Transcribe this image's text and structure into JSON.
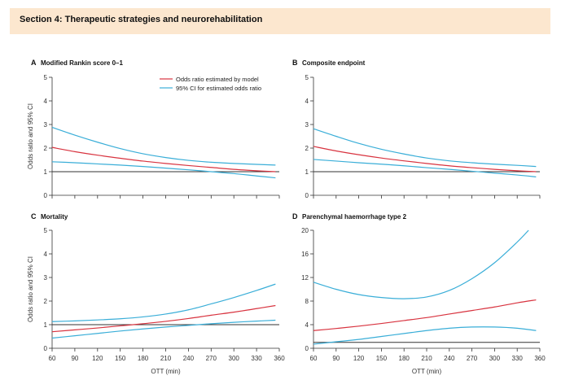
{
  "section": {
    "title": "Section 4: Therapeutic strategies and neurorehabilitation"
  },
  "legend": [
    {
      "label": "Odds ratio estimated by model",
      "color": "#d8333f"
    },
    {
      "label": "95% CI for estimated odds ratio",
      "color": "#3aaed8"
    }
  ],
  "colors": {
    "estimate": "#d8333f",
    "ci": "#3aaed8",
    "reference": "#333333",
    "axis": "#333333"
  },
  "chart_data": [
    {
      "id": "A",
      "letter": "A",
      "title": "Modified Rankin score 0–1",
      "type": "line",
      "xlabel": "",
      "ylabel": "Odds ratio and 95% CI",
      "xlim": [
        60,
        360
      ],
      "ylim": [
        0,
        5
      ],
      "yticks": [
        0,
        1,
        2,
        3,
        4,
        5
      ],
      "xticks": [
        60,
        90,
        120,
        150,
        180,
        210,
        240,
        270,
        300,
        330,
        360
      ],
      "show_xticklabels": false,
      "reference_line": 1,
      "series": [
        {
          "name": "Odds ratio estimated by model",
          "role": "estimate",
          "x": [
            60,
            90,
            120,
            150,
            180,
            210,
            240,
            270,
            300,
            330,
            355
          ],
          "y": [
            2.03,
            1.85,
            1.7,
            1.57,
            1.45,
            1.35,
            1.26,
            1.18,
            1.1,
            1.04,
            1.0
          ]
        },
        {
          "name": "95% CI for estimated odds ratio (upper)",
          "role": "ci",
          "x": [
            60,
            90,
            120,
            150,
            180,
            210,
            240,
            270,
            300,
            330,
            355
          ],
          "y": [
            2.88,
            2.55,
            2.25,
            1.98,
            1.76,
            1.6,
            1.48,
            1.4,
            1.35,
            1.31,
            1.28
          ]
        },
        {
          "name": "95% CI for estimated odds ratio (lower)",
          "role": "ci",
          "x": [
            60,
            90,
            120,
            150,
            180,
            210,
            240,
            270,
            300,
            330,
            355
          ],
          "y": [
            1.42,
            1.38,
            1.33,
            1.28,
            1.22,
            1.15,
            1.08,
            1.0,
            0.92,
            0.82,
            0.74
          ]
        }
      ]
    },
    {
      "id": "B",
      "letter": "B",
      "title": "Composite endpoint",
      "type": "line",
      "xlabel": "",
      "ylabel": "",
      "xlim": [
        60,
        360
      ],
      "ylim": [
        0,
        5
      ],
      "yticks": [
        0,
        1,
        2,
        3,
        4,
        5
      ],
      "xticks": [
        60,
        90,
        120,
        150,
        180,
        210,
        240,
        270,
        300,
        330,
        360
      ],
      "show_xticklabels": false,
      "reference_line": 1,
      "series": [
        {
          "name": "Odds ratio estimated by model",
          "role": "estimate",
          "x": [
            60,
            90,
            120,
            150,
            180,
            210,
            240,
            270,
            300,
            330,
            355
          ],
          "y": [
            2.07,
            1.88,
            1.72,
            1.58,
            1.46,
            1.35,
            1.25,
            1.17,
            1.1,
            1.04,
            1.0
          ]
        },
        {
          "name": "95% CI for estimated odds ratio (upper)",
          "role": "ci",
          "x": [
            60,
            90,
            120,
            150,
            180,
            210,
            240,
            270,
            300,
            330,
            355
          ],
          "y": [
            2.82,
            2.5,
            2.2,
            1.95,
            1.75,
            1.58,
            1.46,
            1.38,
            1.32,
            1.27,
            1.22
          ]
        },
        {
          "name": "95% CI for estimated odds ratio (lower)",
          "role": "ci",
          "x": [
            60,
            90,
            120,
            150,
            180,
            210,
            240,
            270,
            300,
            330,
            355
          ],
          "y": [
            1.52,
            1.45,
            1.38,
            1.32,
            1.25,
            1.17,
            1.1,
            1.02,
            0.94,
            0.86,
            0.78
          ]
        }
      ]
    },
    {
      "id": "C",
      "letter": "C",
      "title": "Mortality",
      "type": "line",
      "xlabel": "OTT (min)",
      "ylabel": "Odds ratio and 95% CI",
      "xlim": [
        60,
        360
      ],
      "ylim": [
        0,
        5
      ],
      "yticks": [
        0,
        1,
        2,
        3,
        4,
        5
      ],
      "xticks": [
        60,
        90,
        120,
        150,
        180,
        210,
        240,
        270,
        300,
        330,
        360
      ],
      "show_xticklabels": true,
      "reference_line": 1,
      "series": [
        {
          "name": "Odds ratio estimated by model",
          "role": "estimate",
          "x": [
            60,
            90,
            120,
            150,
            180,
            210,
            240,
            270,
            300,
            330,
            355
          ],
          "y": [
            0.7,
            0.78,
            0.86,
            0.95,
            1.04,
            1.14,
            1.26,
            1.4,
            1.53,
            1.68,
            1.81
          ]
        },
        {
          "name": "95% CI for estimated odds ratio (upper)",
          "role": "ci",
          "x": [
            60,
            90,
            120,
            150,
            180,
            210,
            240,
            270,
            300,
            330,
            355
          ],
          "y": [
            1.13,
            1.16,
            1.2,
            1.25,
            1.33,
            1.45,
            1.63,
            1.88,
            2.15,
            2.45,
            2.72
          ]
        },
        {
          "name": "95% CI for estimated odds ratio (lower)",
          "role": "ci",
          "x": [
            60,
            90,
            120,
            150,
            180,
            210,
            240,
            270,
            300,
            330,
            355
          ],
          "y": [
            0.43,
            0.53,
            0.63,
            0.73,
            0.82,
            0.9,
            0.97,
            1.04,
            1.1,
            1.15,
            1.19
          ]
        }
      ]
    },
    {
      "id": "D",
      "letter": "D",
      "title": "Parenchymal haemorrhage type 2",
      "type": "line",
      "xlabel": "OTT (min)",
      "ylabel": "",
      "xlim": [
        60,
        360
      ],
      "ylim": [
        0,
        20
      ],
      "yticks": [
        0,
        4,
        8,
        12,
        16,
        20
      ],
      "xticks": [
        60,
        90,
        120,
        150,
        180,
        210,
        240,
        270,
        300,
        330,
        360
      ],
      "show_xticklabels": true,
      "reference_line": 1,
      "series": [
        {
          "name": "Odds ratio estimated by model",
          "role": "estimate",
          "x": [
            60,
            90,
            120,
            150,
            180,
            210,
            240,
            270,
            300,
            330,
            355
          ],
          "y": [
            3.0,
            3.35,
            3.75,
            4.2,
            4.7,
            5.2,
            5.8,
            6.4,
            7.0,
            7.7,
            8.2
          ]
        },
        {
          "name": "95% CI for estimated odds ratio (upper)",
          "role": "ci",
          "x": [
            60,
            90,
            120,
            150,
            180,
            210,
            240,
            270,
            300,
            330,
            345
          ],
          "y": [
            11.2,
            10.0,
            9.1,
            8.6,
            8.4,
            8.7,
            9.8,
            11.8,
            14.5,
            18.0,
            20.0
          ]
        },
        {
          "name": "95% CI for estimated odds ratio (lower)",
          "role": "ci",
          "x": [
            60,
            90,
            120,
            150,
            180,
            210,
            240,
            270,
            300,
            330,
            355
          ],
          "y": [
            0.7,
            1.1,
            1.5,
            2.0,
            2.5,
            3.0,
            3.4,
            3.6,
            3.6,
            3.4,
            3.0
          ]
        }
      ]
    }
  ]
}
